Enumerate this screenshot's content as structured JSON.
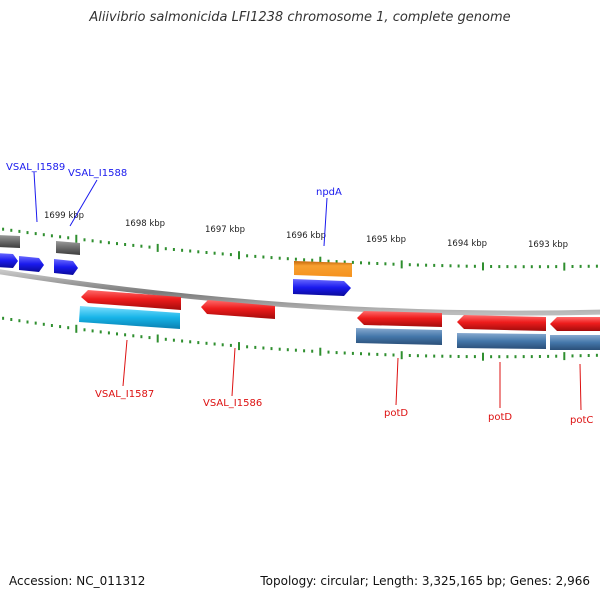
{
  "title": "Aliivibrio salmonicida LFI1238 chromosome 1, complete genome",
  "footer": {
    "accession": "Accession: NC_011312",
    "summary": "Topology: circular; Length: 3,325,165 bp; Genes: 2,966"
  },
  "colors": {
    "backbone": "#8a8a8a",
    "tick": "#2f8f2f",
    "forward_cds": "#1a1aee",
    "forward_other": "#6a6a6a",
    "forward_misc": "#f5921e",
    "reverse_cds": "#ee1c1c",
    "reverse_gene_cyan": "#17b4e8",
    "reverse_gene_steel": "#4477aa",
    "forward_label": "#1a1aee",
    "reverse_label": "#dd1111"
  },
  "kbp_ticks": [
    {
      "label": "1699 kbp",
      "kbp": 1699
    },
    {
      "label": "1698 kbp",
      "kbp": 1698
    },
    {
      "label": "1697 kbp",
      "kbp": 1697
    },
    {
      "label": "1696 kbp",
      "kbp": 1696
    },
    {
      "label": "1695 kbp",
      "kbp": 1695
    },
    {
      "label": "1694 kbp",
      "kbp": 1694
    },
    {
      "label": "1693 kbp",
      "kbp": 1693
    }
  ],
  "forward_labels": [
    {
      "name": "label-VSAL_I1589",
      "text": "VSAL_I1589"
    },
    {
      "name": "label-VSAL_I1588",
      "text": "VSAL_I1588"
    },
    {
      "name": "label-npdA",
      "text": "npdA"
    }
  ],
  "reverse_labels": [
    {
      "name": "label-VSAL_I1587",
      "text": "VSAL_I1587"
    },
    {
      "name": "label-VSAL_I1586",
      "text": "VSAL_I1586"
    },
    {
      "name": "label-potD-1",
      "text": "potD"
    },
    {
      "name": "label-potD-2",
      "text": "potD"
    },
    {
      "name": "label-potC",
      "text": "potC"
    }
  ]
}
